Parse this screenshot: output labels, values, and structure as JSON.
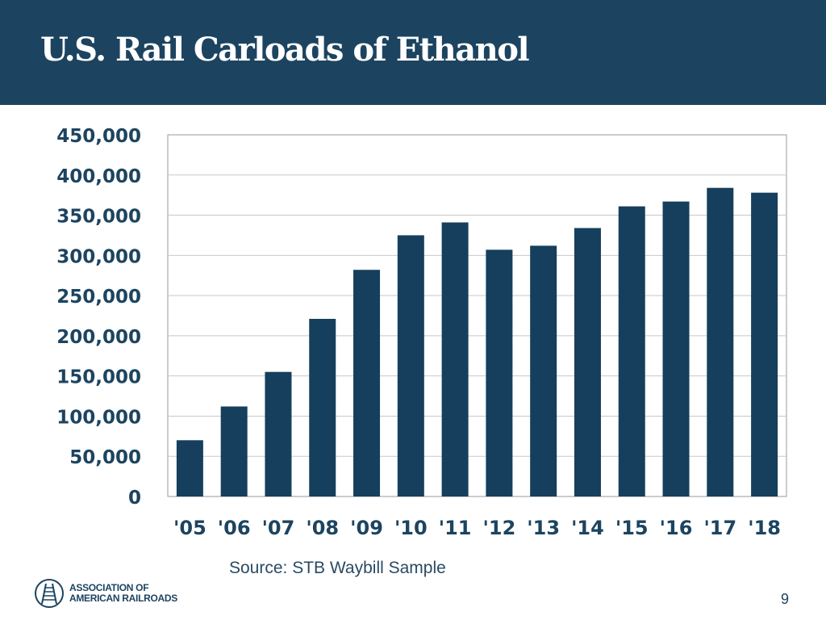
{
  "header": {
    "title": "U.S. Rail Carloads of Ethanol"
  },
  "footer": {
    "source": "Source: STB Waybill Sample",
    "logo_line1": "ASSOCIATION OF",
    "logo_line2": "AMERICAN RAILROADS",
    "page_number": "9"
  },
  "colors": {
    "header_bg": "#1c4460",
    "bar": "#153f5c",
    "gridline": "#c8c8c8",
    "axis_text": "#1c4460"
  },
  "chart_data": {
    "type": "bar",
    "title": "U.S. Rail Carloads of Ethanol",
    "xlabel": "",
    "ylabel": "",
    "categories": [
      "'05",
      "'06",
      "'07",
      "'08",
      "'09",
      "'10",
      "'11",
      "'12",
      "'13",
      "'14",
      "'15",
      "'16",
      "'17",
      "'18"
    ],
    "values": [
      70000,
      112000,
      155000,
      221000,
      282000,
      325000,
      341000,
      307000,
      312000,
      334000,
      361000,
      367000,
      384000,
      378000
    ],
    "ylim": [
      0,
      450000
    ],
    "yticks": [
      0,
      50000,
      100000,
      150000,
      200000,
      250000,
      300000,
      350000,
      400000,
      450000
    ],
    "ytick_labels": [
      "0",
      "50,000",
      "100,000",
      "150,000",
      "200,000",
      "250,000",
      "300,000",
      "350,000",
      "400,000",
      "450,000"
    ],
    "grid": true,
    "legend": "none"
  }
}
